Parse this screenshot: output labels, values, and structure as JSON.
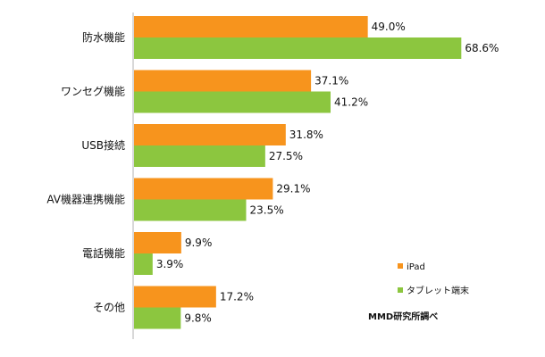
{
  "chart_data": {
    "type": "bar",
    "orientation": "horizontal",
    "categories": [
      "防水機能",
      "ワンセグ機能",
      "USB接続",
      "AV機器連携機能",
      "電話機能",
      "その他"
    ],
    "series": [
      {
        "name": "iPad",
        "color": "#F7941D",
        "values": [
          49.0,
          37.1,
          31.8,
          29.1,
          9.9,
          17.2
        ]
      },
      {
        "name": "タブレット端末",
        "color": "#8CC63F",
        "values": [
          68.6,
          41.2,
          27.5,
          23.5,
          3.9,
          9.8
        ]
      }
    ],
    "value_labels": {
      "iPad": [
        "49.0%",
        "37.1%",
        "31.8%",
        "29.1%",
        "9.9%",
        "17.2%"
      ],
      "タブレット端末": [
        "68.6%",
        "41.2%",
        "27.5%",
        "23.5%",
        "3.9%",
        "9.8%"
      ]
    },
    "xlim": [
      0,
      100
    ],
    "grid": false,
    "legend_position": "bottom-right",
    "title": "",
    "xlabel": "",
    "ylabel": ""
  },
  "legend": {
    "items": [
      {
        "label": "iPad",
        "color": "#F7941D"
      },
      {
        "label": "タブレット端末",
        "color": "#8CC63F"
      }
    ]
  },
  "source": "MMD研究所調べ"
}
